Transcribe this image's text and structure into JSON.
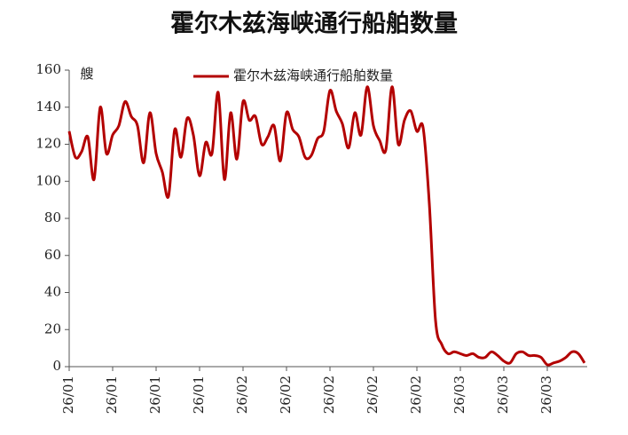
{
  "chart_data": {
    "type": "line",
    "title": "霍尔木兹海峡通行船舶数量",
    "y_unit": "艘",
    "categories": [
      "26/01",
      null,
      null,
      null,
      null,
      null,
      null,
      "26/01",
      null,
      null,
      null,
      null,
      null,
      null,
      "26/01",
      null,
      null,
      null,
      null,
      null,
      null,
      "26/01",
      null,
      null,
      null,
      null,
      null,
      null,
      "26/02",
      null,
      null,
      null,
      null,
      null,
      null,
      "26/02",
      null,
      null,
      null,
      null,
      null,
      null,
      "26/02",
      null,
      null,
      null,
      null,
      null,
      null,
      "26/02",
      null,
      null,
      null,
      null,
      null,
      null,
      "26/02",
      null,
      null,
      null,
      null,
      null,
      null,
      "26/03",
      null,
      null,
      null,
      null,
      null,
      null,
      "26/03",
      null,
      null,
      null,
      null,
      null,
      null,
      "26/03",
      null,
      null,
      null,
      null,
      null,
      null
    ],
    "series": [
      {
        "name": "霍尔木兹海峡通行船舶数量",
        "color": "#b30000",
        "values": [
          127,
          113,
          116,
          124,
          101,
          140,
          115,
          125,
          130,
          143,
          135,
          130,
          110,
          137,
          115,
          105,
          92,
          128,
          113,
          134,
          125,
          103,
          121,
          115,
          148,
          101,
          137,
          112,
          143,
          133,
          135,
          120,
          124,
          130,
          111,
          137,
          128,
          124,
          113,
          114,
          123,
          127,
          149,
          138,
          131,
          118,
          137,
          125,
          151,
          130,
          122,
          117,
          151,
          120,
          133,
          138,
          127,
          129,
          88,
          25,
          12,
          7,
          8,
          7,
          6,
          7,
          5,
          5,
          8,
          6,
          3,
          2,
          7,
          8,
          6,
          6,
          5,
          1,
          2,
          3,
          5,
          8,
          7,
          2
        ]
      }
    ],
    "ylim": [
      0,
      160
    ],
    "yticks": [
      0,
      20,
      40,
      60,
      80,
      100,
      120,
      140,
      160
    ],
    "grid": false,
    "legend": "top"
  }
}
